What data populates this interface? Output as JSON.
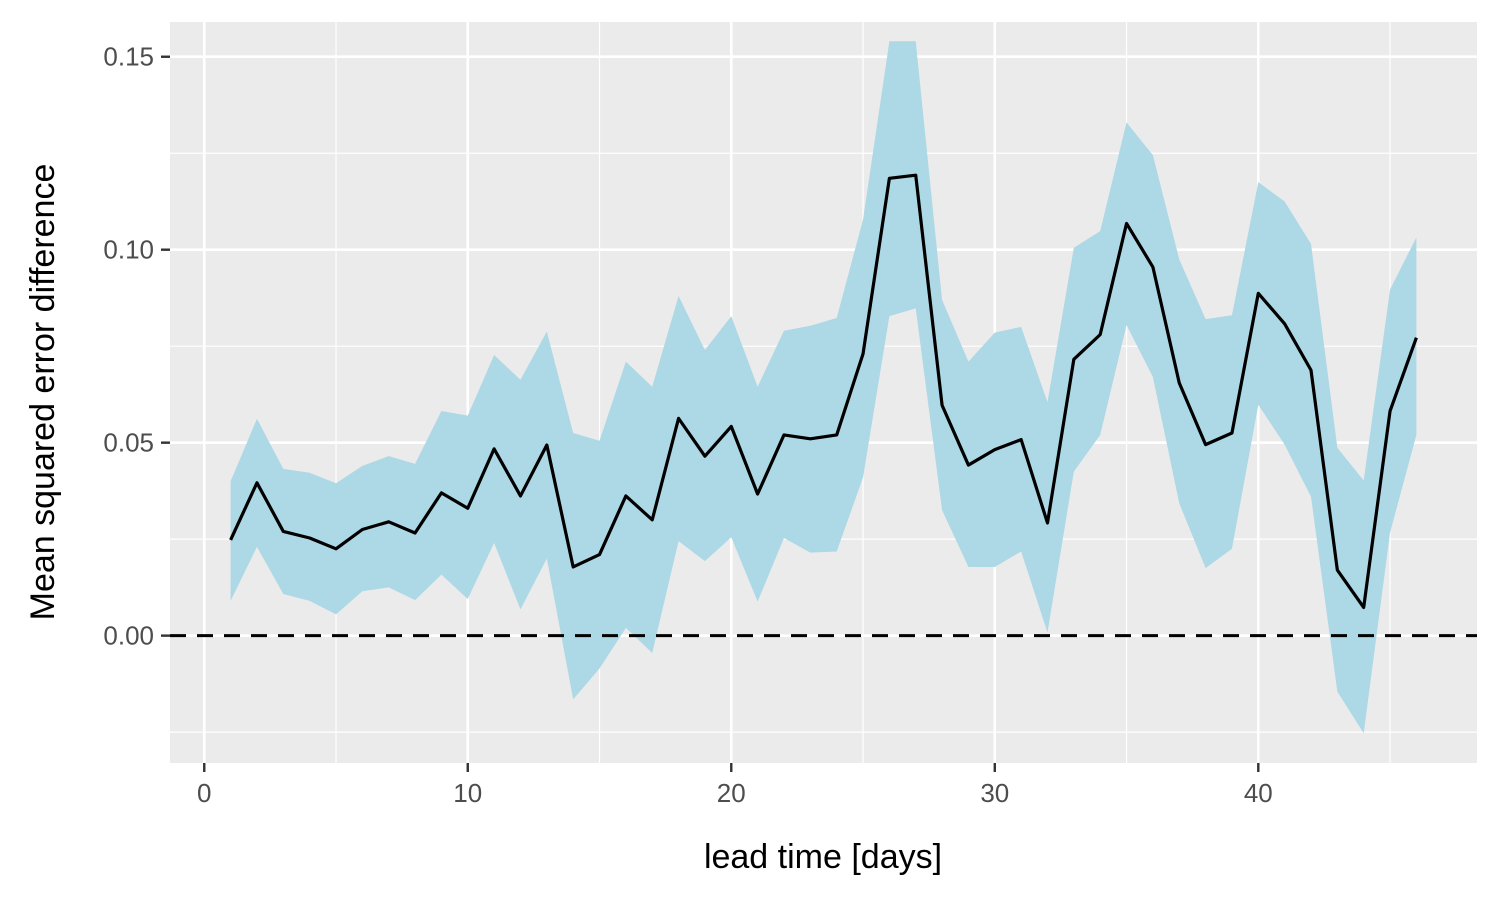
{
  "chart_data": {
    "type": "line",
    "title": "",
    "xlabel": "lead time [days]",
    "ylabel": "Mean squared error difference",
    "xlim": [
      -1.3,
      48.3
    ],
    "ylim": [
      -0.033,
      0.159
    ],
    "x_ticks": [
      0,
      10,
      20,
      30,
      40
    ],
    "x_tick_labels": [
      "0",
      "10",
      "20",
      "30",
      "40"
    ],
    "y_ticks": [
      0.0,
      0.05,
      0.1,
      0.15
    ],
    "y_tick_labels": [
      "0.00",
      "0.05",
      "0.10",
      "0.15"
    ],
    "grid": true,
    "legend": "none",
    "reference_line": {
      "y": 0,
      "style": "dashed",
      "color": "#000000"
    },
    "colors": {
      "panel_background": "#ebebeb",
      "grid": "#ffffff",
      "band_fill": "#add8e6",
      "line": "#000000"
    },
    "x": [
      1,
      2,
      3,
      4,
      5,
      6,
      7,
      8,
      9,
      10,
      11,
      12,
      13,
      14,
      15,
      16,
      17,
      18,
      19,
      20,
      21,
      22,
      23,
      24,
      25,
      26,
      27,
      28,
      29,
      30,
      31,
      32,
      33,
      34,
      35,
      36,
      37,
      38,
      39,
      40,
      41,
      42,
      43,
      44,
      45,
      46
    ],
    "series": [
      {
        "values": [
          0.0248,
          0.0396,
          0.027,
          0.0253,
          0.0225,
          0.0275,
          0.0295,
          0.0266,
          0.037,
          0.033,
          0.0484,
          0.0362,
          0.0494,
          0.0178,
          0.021,
          0.0362,
          0.03,
          0.0563,
          0.0465,
          0.0542,
          0.0367,
          0.052,
          0.051,
          0.052,
          0.073,
          0.1185,
          0.1193,
          0.0597,
          0.0442,
          0.0482,
          0.0508,
          0.0292,
          0.0716,
          0.078,
          0.1068,
          0.0955,
          0.0655,
          0.0495,
          0.0525,
          0.0887,
          0.0808,
          0.0688,
          0.017,
          0.0073,
          0.0582,
          0.0772
        ],
        "upper": [
          0.04,
          0.0562,
          0.0432,
          0.0422,
          0.0395,
          0.044,
          0.0465,
          0.0445,
          0.0582,
          0.057,
          0.0727,
          0.0663,
          0.0788,
          0.0525,
          0.0505,
          0.071,
          0.0645,
          0.088,
          0.074,
          0.0828,
          0.0645,
          0.079,
          0.0803,
          0.0823,
          0.1078,
          0.154,
          0.154,
          0.087,
          0.071,
          0.0785,
          0.08,
          0.0605,
          0.1005,
          0.1048,
          0.133,
          0.1245,
          0.0975,
          0.082,
          0.083,
          0.1175,
          0.1125,
          0.1015,
          0.0487,
          0.0402,
          0.0897,
          0.1032
        ],
        "lower": [
          0.009,
          0.023,
          0.0108,
          0.009,
          0.0055,
          0.0115,
          0.0125,
          0.0092,
          0.0158,
          0.0095,
          0.024,
          0.0068,
          0.02,
          -0.0165,
          -0.0085,
          0.002,
          -0.0045,
          0.0245,
          0.0193,
          0.0255,
          0.0088,
          0.0253,
          0.0215,
          0.0218,
          0.041,
          0.0828,
          0.0848,
          0.0325,
          0.0178,
          0.0178,
          0.0218,
          0.0008,
          0.0425,
          0.052,
          0.0805,
          0.067,
          0.0343,
          0.0175,
          0.0225,
          0.0598,
          0.0495,
          0.036,
          -0.0145,
          -0.0253,
          0.0267,
          0.052
        ]
      }
    ]
  }
}
